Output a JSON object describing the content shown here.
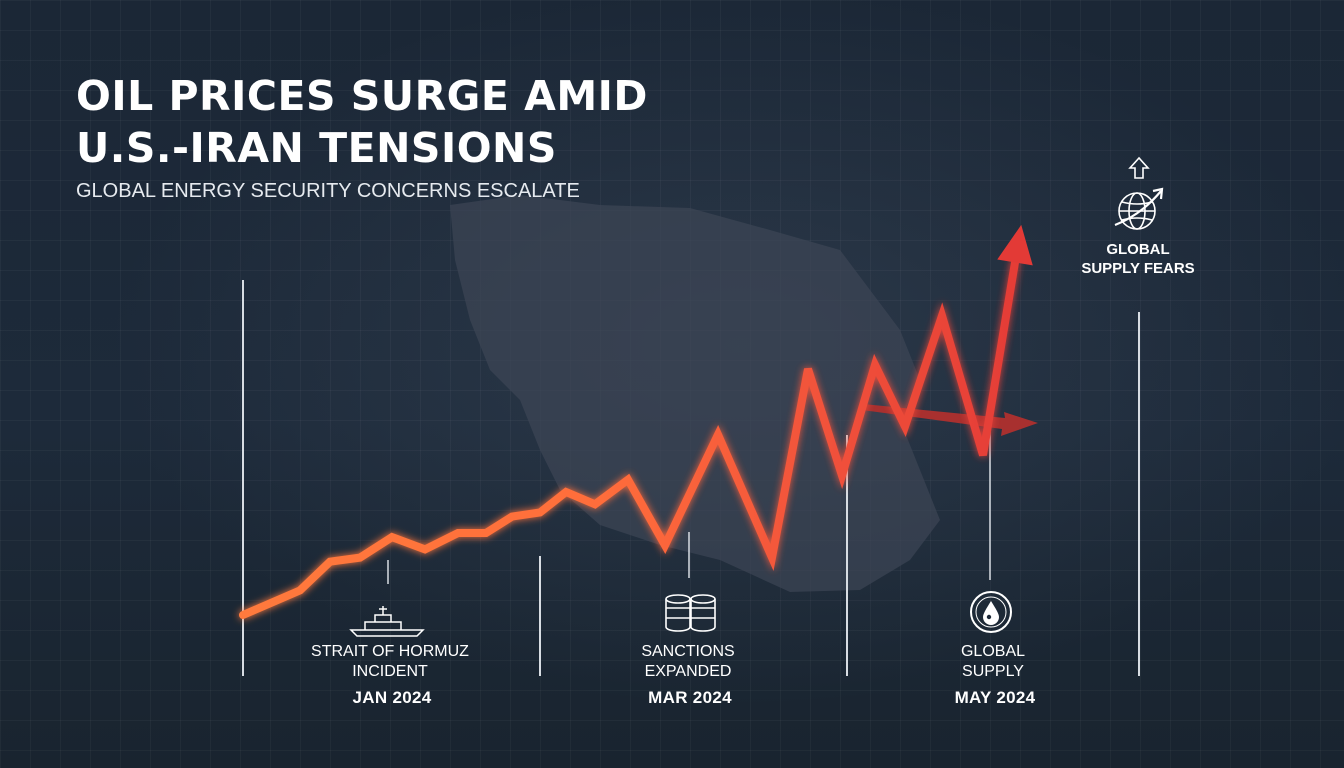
{
  "header": {
    "title": "OIL PRICES SURGE AMID U.S.-IRAN TENSIONS",
    "subtitle": "GLOBAL ENERGY SECURITY CONCERNS ESCALATE"
  },
  "chart_data": {
    "type": "line",
    "title": "OIL PRICES SURGE AMID U.S.-IRAN TENSIONS",
    "subtitle": "GLOBAL ENERGY SECURITY CONCERNS ESCALATE",
    "xlabel": "",
    "ylabel": "",
    "x_ticks": [
      "JAN 2024",
      "MAR 2024",
      "MAY 2024"
    ],
    "grid": true,
    "legend": "none",
    "series": [
      {
        "values": [
          0,
          6,
          13,
          14,
          19,
          16,
          20,
          20,
          24,
          25,
          30,
          27,
          33,
          17,
          44,
          14,
          60,
          34,
          61,
          46,
          73,
          39,
          86
        ]
      }
    ],
    "annotations": [
      {
        "date": "JAN 2024",
        "label": "STRAIT OF HORMUZ INCIDENT",
        "icon": "warship-icon"
      },
      {
        "date": "MAR 2024",
        "label": "SANCTIONS EXPANDED",
        "icon": "oil-barrels-icon"
      },
      {
        "date": "MAY 2024",
        "label": "GLOBAL SUPPLY",
        "icon": "oil-drop-icon"
      },
      {
        "date": "",
        "label": "GLOBAL SUPPLY FEARS",
        "icon": "globe-arrow-icon"
      }
    ],
    "colors": {
      "line_start": "#ff7a3c",
      "line_end": "#e33a36",
      "side_arrow": "#a8302f",
      "background": "#1c2838",
      "map": "#3d4655"
    }
  }
}
